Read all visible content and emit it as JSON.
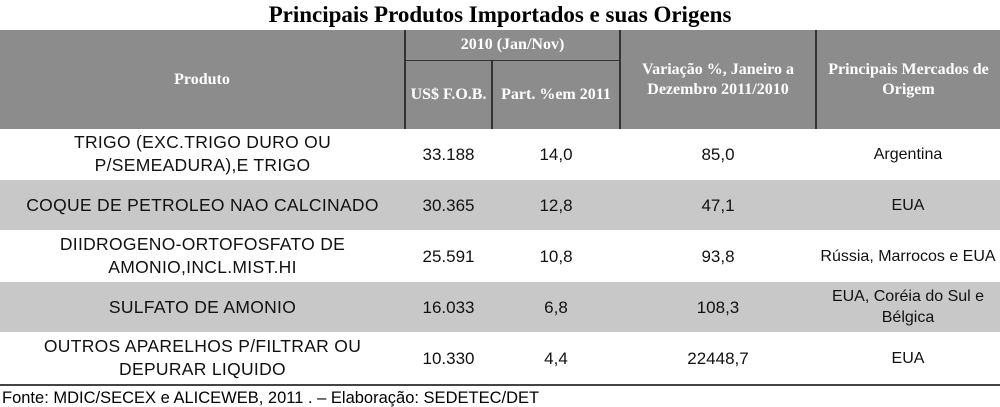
{
  "title": "Principais Produtos Importados e suas Origens",
  "table": {
    "header": {
      "product": "Produto",
      "group": "2010 (Jan/Nov)",
      "fob": "US$ F.O.B.",
      "share": "Part. %em 2011",
      "variation": "Variação %, Janeiro a Dezembro 2011/2010",
      "markets": "Principais Mercados de Origem"
    },
    "rows": [
      [
        "TRIGO (EXC.TRIGO DURO OU P/SEMEADURA),E TRIGO",
        "33.188",
        "14,0",
        "85,0",
        "Argentina"
      ],
      [
        "COQUE DE PETROLEO NAO CALCINADO",
        "30.365",
        "12,8",
        "47,1",
        "EUA"
      ],
      [
        "DIIDROGENO-ORTOFOSFATO DE AMONIO,INCL.MIST.HI",
        "25.591",
        "10,8",
        "93,8",
        "Rússia, Marrocos e EUA"
      ],
      [
        "SULFATO DE AMONIO",
        "16.033",
        "6,8",
        "108,3",
        "EUA, Coréia do Sul e Bélgica"
      ],
      [
        "OUTROS APARELHOS P/FILTRAR OU DEPURAR LIQUIDO",
        "10.330",
        "4,4",
        "22448,7",
        "EUA"
      ]
    ]
  },
  "footer": "Fonte: MDIC/SECEX e ALICEWEB, 2011 . – Elaboração: SEDETEC/DET"
}
